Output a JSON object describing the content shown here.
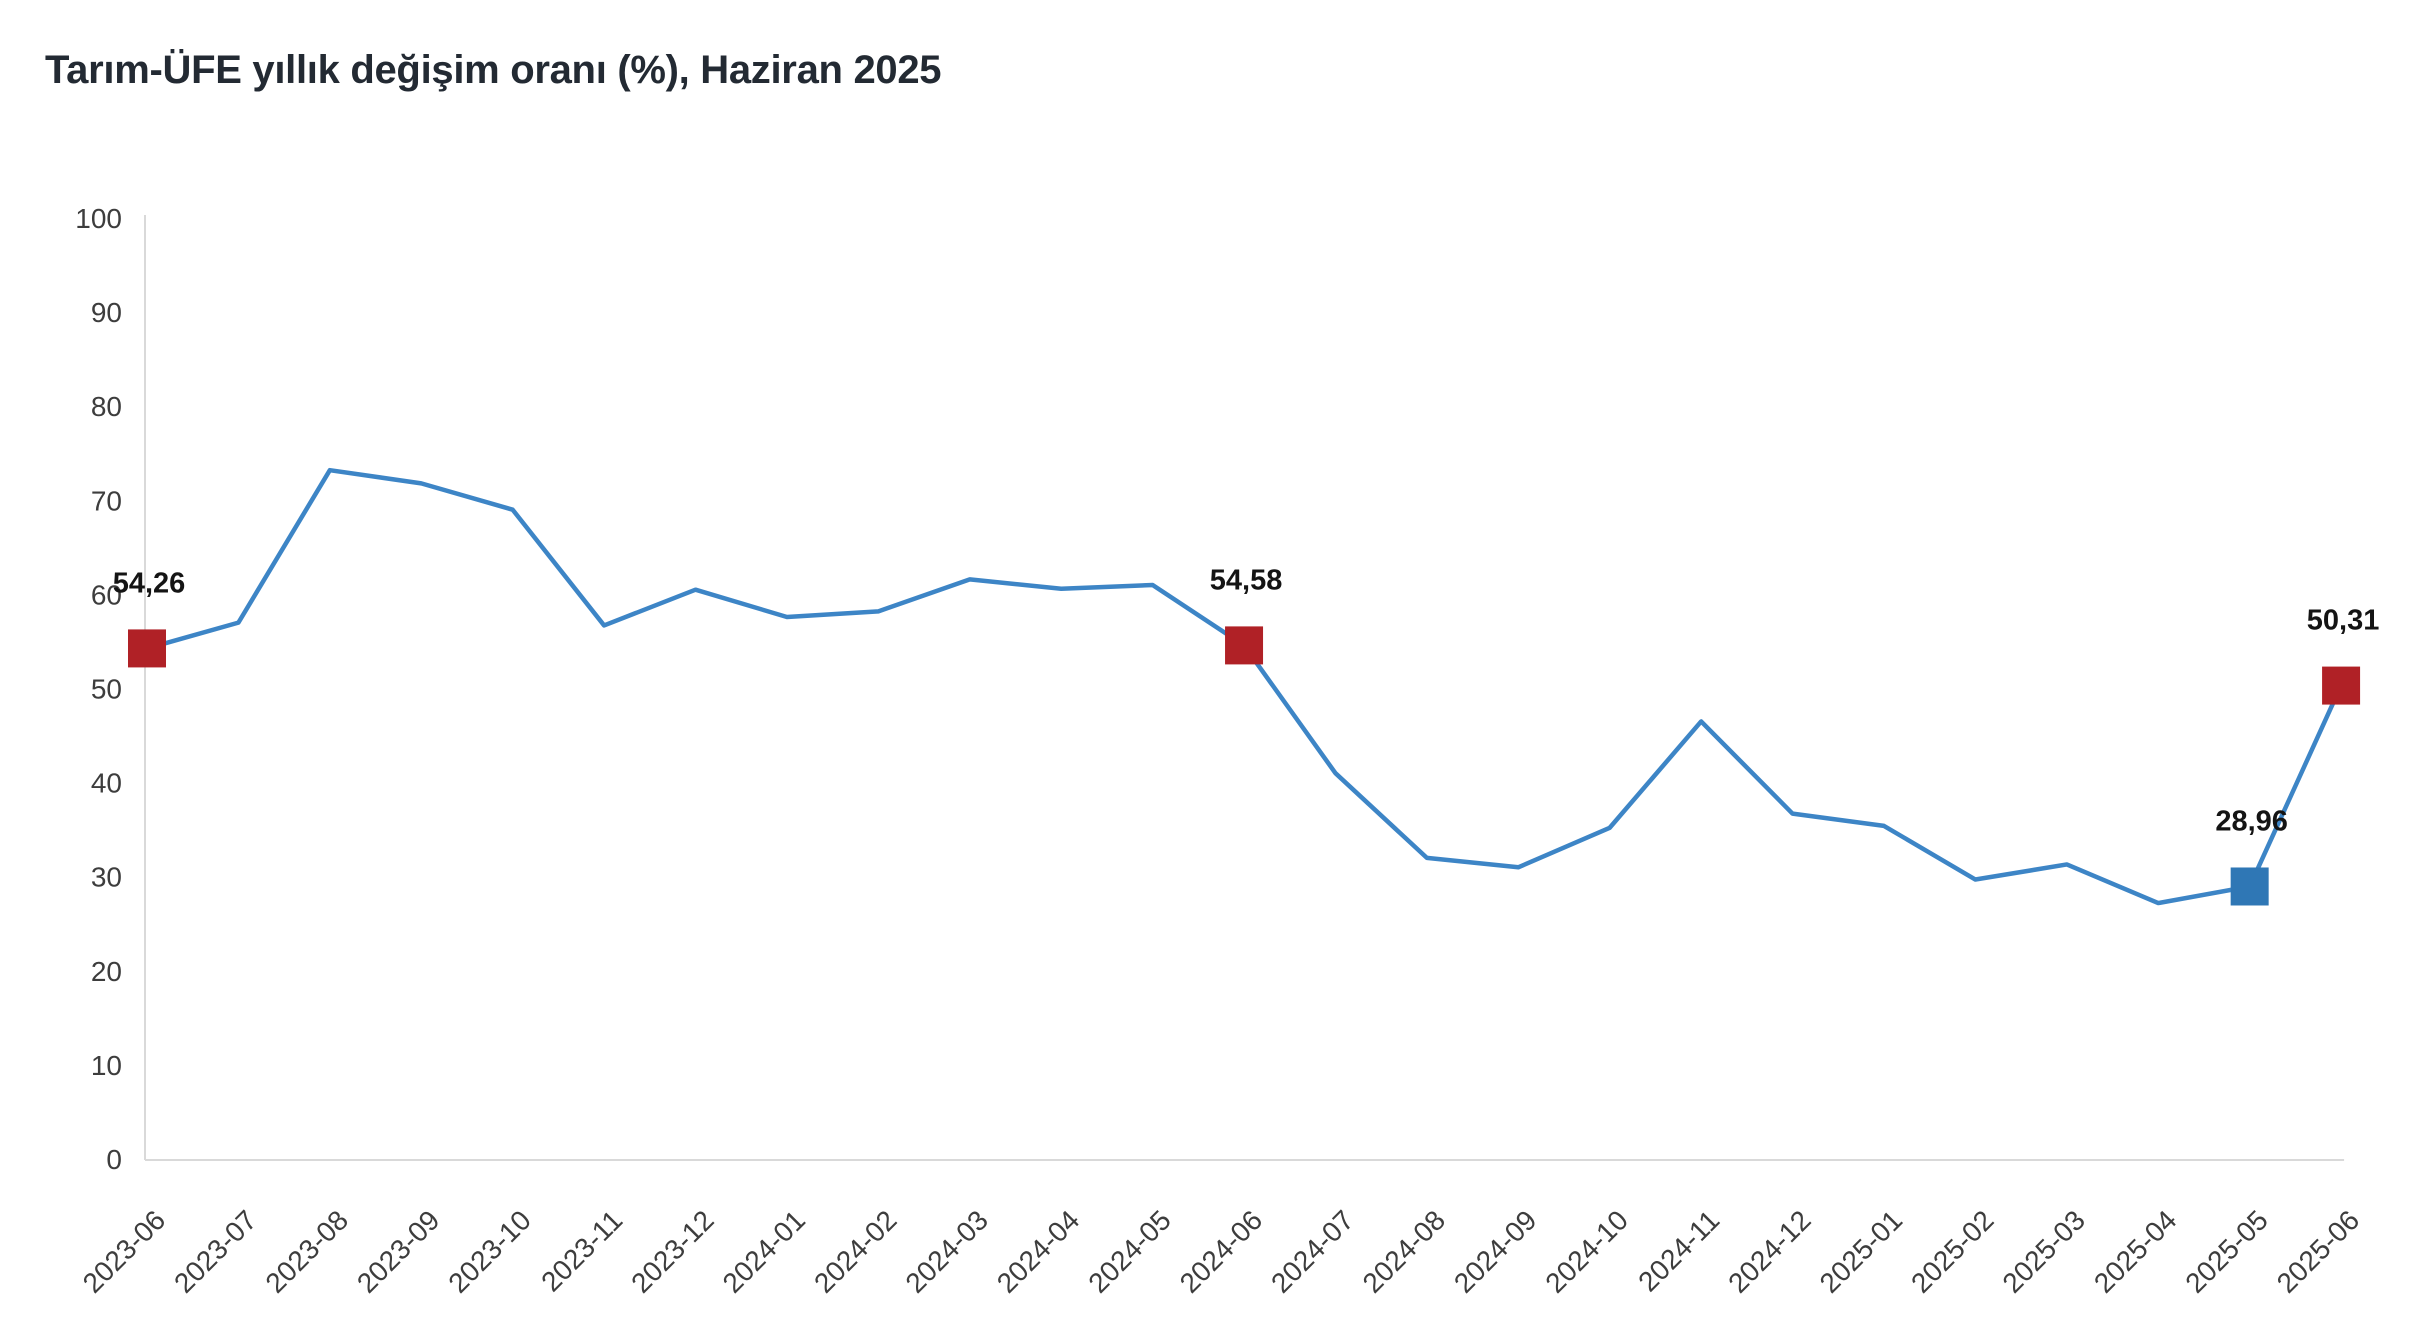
{
  "page": {
    "background": "#ffffff"
  },
  "title": "Tarım-ÜFE yıllık değişim oranı (%), Haziran 2025",
  "chart_data": {
    "type": "line",
    "title": "Tarım-ÜFE yıllık değişim oranı (%), Haziran 2025",
    "x_labels": [
      "2023-06",
      "2023-07",
      "2023-08",
      "2023-09",
      "2023-10",
      "2023-11",
      "2023-12",
      "2024-01",
      "2024-02",
      "2024-03",
      "2024-04",
      "2024-05",
      "2024-06",
      "2024-07",
      "2024-08",
      "2024-09",
      "2024-10",
      "2024-11",
      "2024-12",
      "2025-01",
      "2025-02",
      "2025-03",
      "2025-04",
      "2025-05",
      "2025-06"
    ],
    "series": [
      {
        "name": "Tarım-ÜFE yıllık değişim oranı (%)",
        "values": [
          54.26,
          57.0,
          73.2,
          71.8,
          69.0,
          56.7,
          60.5,
          57.6,
          58.2,
          61.6,
          60.6,
          61.0,
          54.58,
          41.0,
          32.0,
          31.0,
          35.2,
          46.5,
          36.7,
          35.4,
          29.7,
          31.3,
          27.2,
          28.96,
          50.31
        ]
      }
    ],
    "ylim": [
      0,
      100
    ],
    "y_ticks": [
      0,
      10,
      20,
      30,
      40,
      50,
      60,
      70,
      80,
      90,
      100
    ],
    "grid": false,
    "legend_position": "none",
    "x_label_rotation_deg": -45,
    "line_color": "#3d85c6",
    "axis_color": "#d9d9d9",
    "tick_label_color": "#3d3d3d",
    "data_label_color": "#141414",
    "highlighted_points": [
      {
        "month": "2023-06",
        "value": 54.26,
        "label": "54,26",
        "color": "#b02126"
      },
      {
        "month": "2024-06",
        "value": 54.58,
        "label": "54,58",
        "color": "#b02126"
      },
      {
        "month": "2025-05",
        "value": 28.96,
        "label": "28,96",
        "color": "#2f77b5"
      },
      {
        "month": "2025-06",
        "value": 50.31,
        "label": "50,31",
        "color": "#b02126"
      }
    ]
  }
}
